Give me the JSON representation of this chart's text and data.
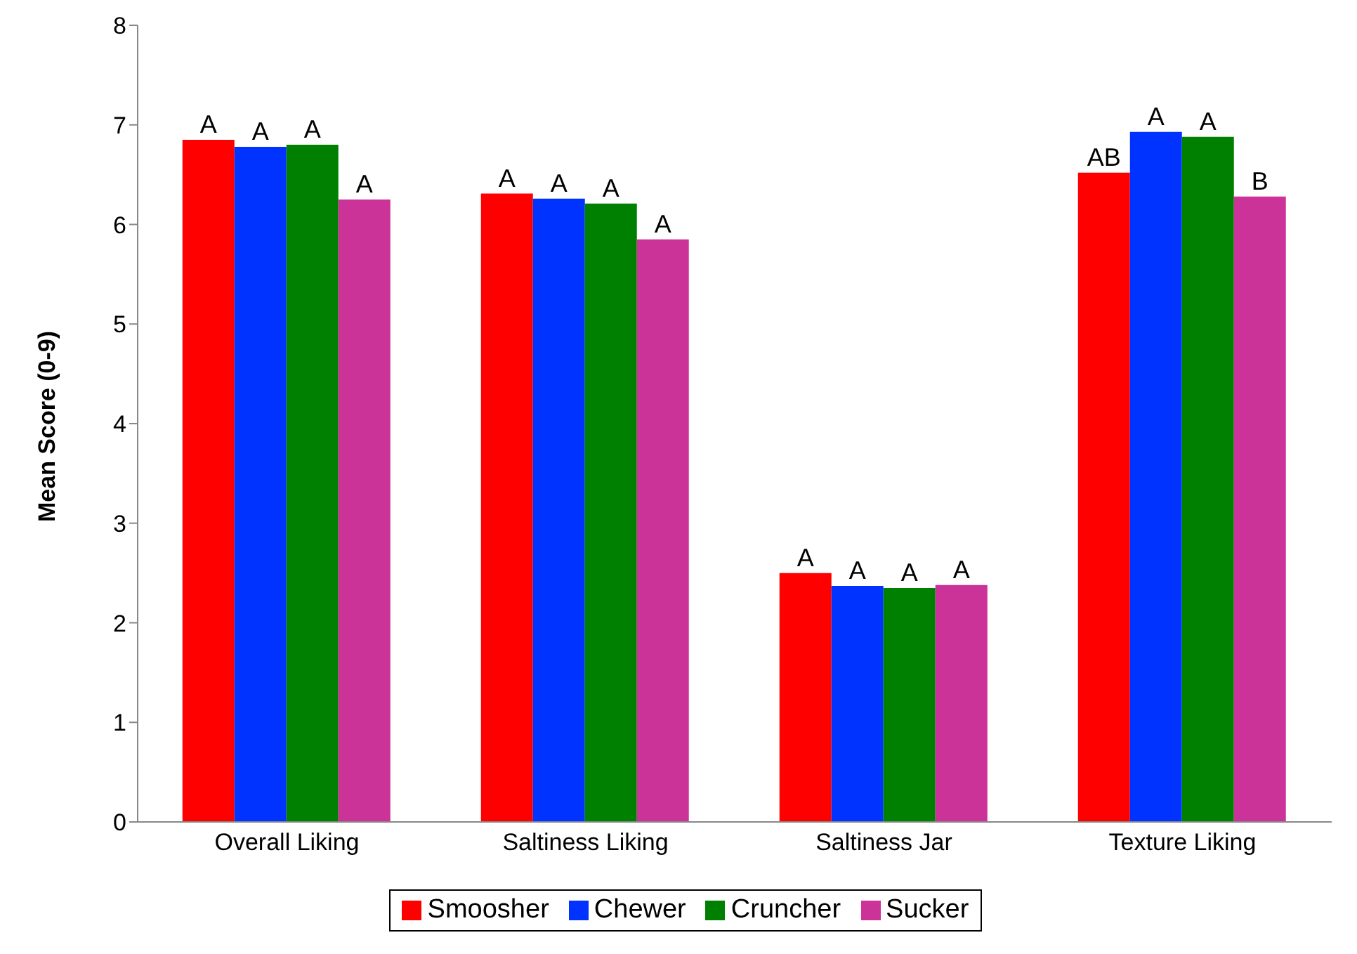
{
  "chart_data": {
    "type": "bar",
    "ylabel": "Mean Score (0-9)",
    "categories": [
      "Overall Liking",
      "Saltiness Liking",
      "Saltiness Jar",
      "Texture Liking"
    ],
    "ylim": [
      0,
      8
    ],
    "yticks": [
      0,
      1,
      2,
      3,
      4,
      5,
      6,
      7,
      8
    ],
    "grid": false,
    "legend": "bottom",
    "series": [
      {
        "name": "Smoosher",
        "color": "#ff0000",
        "values": [
          6.85,
          6.31,
          2.5,
          6.52
        ],
        "value_labels": [
          "A",
          "A",
          "A",
          "AB"
        ]
      },
      {
        "name": "Chewer",
        "color": "#0033ff",
        "values": [
          6.78,
          6.26,
          2.37,
          6.93
        ],
        "value_labels": [
          "A",
          "A",
          "A",
          "A"
        ]
      },
      {
        "name": "Cruncher",
        "color": "#008000",
        "values": [
          6.8,
          6.21,
          2.35,
          6.88
        ],
        "value_labels": [
          "A",
          "A",
          "A",
          "A"
        ]
      },
      {
        "name": "Sucker",
        "color": "#cc3399",
        "values": [
          6.25,
          5.85,
          2.38,
          6.28
        ],
        "value_labels": [
          "A",
          "A",
          "A",
          "B"
        ]
      }
    ]
  }
}
